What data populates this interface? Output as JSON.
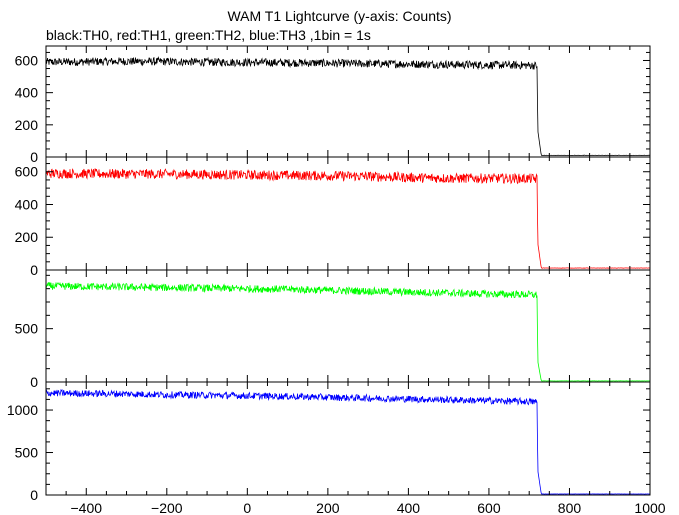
{
  "title": "WAM T1 Lightcurve (y-axis: Counts)",
  "subtitle": "black:TH0, red:TH1, green:TH2, blue:TH3 ,1bin = 1s",
  "chart_data": {
    "type": "line",
    "title": "WAM T1 Lightcurve (y-axis: Counts)",
    "subtitle": "black:TH0, red:TH1, green:TH2, blue:TH3 ,1bin = 1s",
    "xlabel": "",
    "ylabel": "",
    "xlim": [
      -500,
      1000
    ],
    "x_ticks": [
      -400,
      -200,
      0,
      200,
      400,
      600,
      800,
      1000
    ],
    "grid": false,
    "x": [
      -500,
      -400,
      -300,
      -200,
      -100,
      0,
      100,
      200,
      300,
      400,
      500,
      600,
      700,
      720,
      721,
      730,
      800,
      900,
      1000
    ],
    "panels": [
      {
        "name": "TH0",
        "color": "#000000",
        "ylim": [
          0,
          690
        ],
        "y_ticks": [
          0,
          200,
          400,
          600
        ],
        "values": [
          590,
          592,
          595,
          593,
          590,
          588,
          586,
          583,
          580,
          578,
          575,
          572,
          570,
          568,
          170,
          10,
          10,
          10,
          10
        ],
        "noise": 25
      },
      {
        "name": "TH1",
        "color": "#ff0000",
        "ylim": [
          0,
          690
        ],
        "y_ticks": [
          0,
          200,
          400,
          600
        ],
        "values": [
          590,
          588,
          587,
          586,
          583,
          580,
          578,
          576,
          572,
          565,
          560,
          560,
          558,
          556,
          170,
          12,
          12,
          12,
          12
        ],
        "noise": 30
      },
      {
        "name": "TH2",
        "color": "#00ff00",
        "ylim": [
          0,
          1050
        ],
        "y_ticks": [
          0,
          500
        ],
        "values": [
          900,
          895,
          890,
          885,
          880,
          875,
          870,
          860,
          852,
          842,
          835,
          825,
          820,
          815,
          200,
          10,
          10,
          10,
          10
        ],
        "noise": 35
      },
      {
        "name": "TH3",
        "color": "#0000ff",
        "ylim": [
          0,
          1330
        ],
        "y_ticks": [
          0,
          500,
          1000
        ],
        "values": [
          1200,
          1195,
          1190,
          1180,
          1175,
          1168,
          1160,
          1150,
          1140,
          1130,
          1120,
          1110,
          1100,
          1095,
          300,
          12,
          12,
          12,
          12
        ],
        "noise": 40
      }
    ]
  }
}
